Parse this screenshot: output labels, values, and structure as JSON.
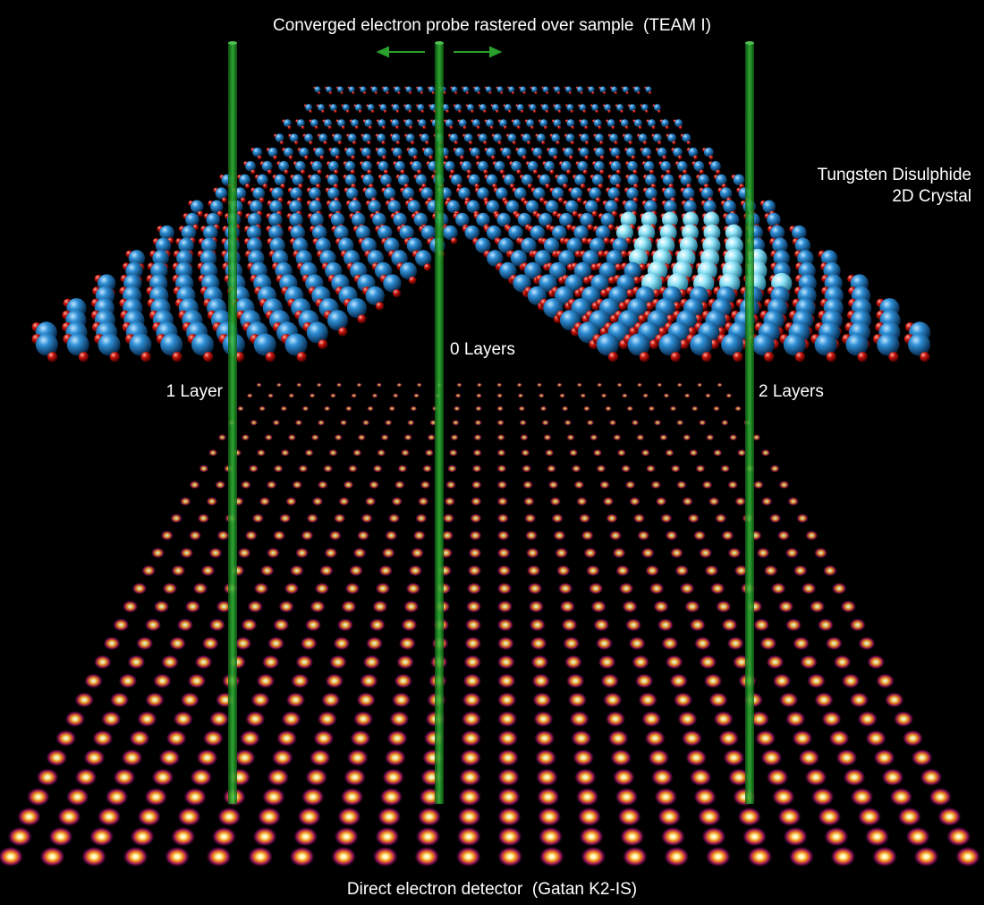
{
  "title": "Converged electron probe rastered over sample  (TEAM I)",
  "sample_label": {
    "line1": "Tungsten Disulphide",
    "line2": "2D Crystal"
  },
  "regions": [
    {
      "label": "1 Layer"
    },
    {
      "label": "0 Layers"
    },
    {
      "label": "2 Layers"
    }
  ],
  "detector_label": "Direct electron detector  (Gatan K2-IS)"
}
